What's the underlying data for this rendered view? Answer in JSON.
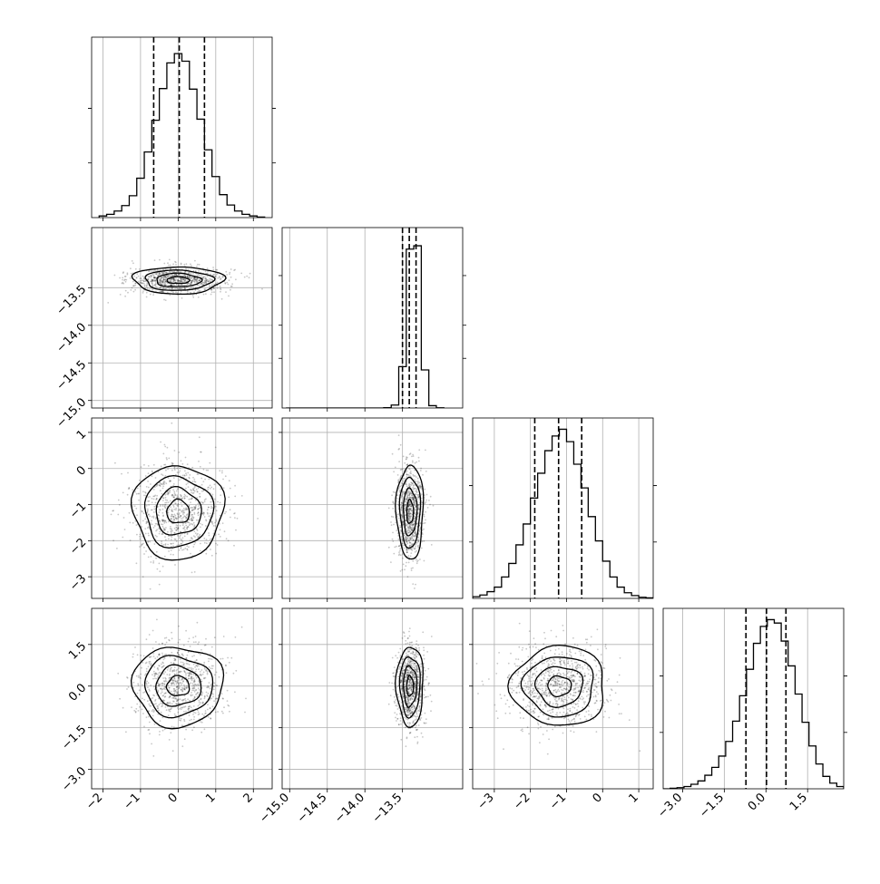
{
  "chart_data": {
    "type": "corner",
    "title": "",
    "params": [
      {
        "range": [
          -2.3,
          2.5
        ],
        "ticks": [
          -2,
          -1,
          0,
          1,
          2
        ],
        "tick_labels": [
          "−2",
          "−1",
          "0",
          "1",
          "2"
        ],
        "mean": 0.0,
        "sd": 0.6,
        "quantiles": [
          -0.65,
          0.03,
          0.7
        ]
      },
      {
        "range": [
          -15.1,
          -12.7
        ],
        "ticks": [
          -15.0,
          -14.5,
          -14.0,
          -13.5
        ],
        "tick_labels": [
          "−15.0",
          "−14.5",
          "−14.0",
          "−13.5"
        ],
        "mean": -13.4,
        "sd": 0.09,
        "quantiles": [
          -13.5,
          -13.41,
          -13.32
        ]
      },
      {
        "range": [
          -3.6,
          1.4
        ],
        "ticks": [
          -3,
          -2,
          -1,
          0,
          1
        ],
        "tick_labels": [
          "−3",
          "−2",
          "−1",
          "0",
          "1"
        ],
        "mean": -1.2,
        "sd": 0.65,
        "quantiles": [
          -1.88,
          -1.22,
          -0.58
        ]
      },
      {
        "range": [
          -3.7,
          2.8
        ],
        "ticks": [
          -3.0,
          -1.5,
          0.0,
          1.5
        ],
        "tick_labels": [
          "−3.0",
          "−1.5",
          "0.0",
          "1.5"
        ],
        "mean": 0.0,
        "sd": 0.72,
        "quantiles": [
          -0.72,
          0.02,
          0.72
        ]
      }
    ],
    "histograms": [
      {
        "param": 0,
        "bins": [
          -2.1,
          -1.9,
          -1.7,
          -1.5,
          -1.3,
          -1.1,
          -0.9,
          -0.7,
          -0.5,
          -0.3,
          -0.1,
          0.1,
          0.3,
          0.5,
          0.7,
          0.9,
          1.1,
          1.3,
          1.5,
          1.7,
          1.9,
          2.1,
          2.3
        ],
        "counts": [
          3,
          6,
          12,
          22,
          40,
          72,
          120,
          178,
          236,
          283,
          300,
          286,
          235,
          180,
          124,
          75,
          42,
          23,
          12,
          6,
          3,
          1
        ],
        "ylim": [
          0,
          330
        ]
      },
      {
        "param": 1,
        "bins": [
          -15.05,
          -14.95,
          -14.85,
          -14.75,
          -14.65,
          -14.55,
          -14.45,
          -14.35,
          -14.25,
          -14.15,
          -14.05,
          -13.95,
          -13.85,
          -13.75,
          -13.65,
          -13.55,
          -13.45,
          -13.35,
          -13.25,
          -13.15,
          -13.05,
          -12.95
        ],
        "counts": [
          0,
          0,
          0,
          0,
          0,
          0,
          0,
          0,
          0,
          0,
          0,
          0,
          0,
          2,
          18,
          250,
          960,
          980,
          230,
          14,
          1
        ],
        "ylim": [
          0,
          1090
        ]
      },
      {
        "param": 2,
        "bins": [
          -3.6,
          -3.4,
          -3.2,
          -3.0,
          -2.8,
          -2.6,
          -2.4,
          -2.2,
          -2.0,
          -1.8,
          -1.6,
          -1.4,
          -1.2,
          -1.0,
          -0.8,
          -0.6,
          -0.4,
          -0.2,
          0.0,
          0.2,
          0.4,
          0.6,
          0.8,
          1.0,
          1.2,
          1.4
        ],
        "counts": [
          3,
          6,
          12,
          20,
          38,
          62,
          95,
          132,
          178,
          222,
          262,
          288,
          300,
          278,
          238,
          196,
          145,
          102,
          66,
          38,
          20,
          10,
          5,
          2,
          1
        ],
        "ylim": [
          0,
          320
        ]
      },
      {
        "param": 3,
        "bins": [
          -3.7,
          -3.45,
          -3.2,
          -2.95,
          -2.7,
          -2.45,
          -2.2,
          -1.95,
          -1.7,
          -1.45,
          -1.2,
          -0.95,
          -0.7,
          -0.45,
          -0.2,
          0.05,
          0.3,
          0.55,
          0.8,
          1.05,
          1.3,
          1.55,
          1.8,
          2.05,
          2.3,
          2.55,
          2.8
        ],
        "counts": [
          0,
          1,
          2,
          4,
          8,
          14,
          24,
          38,
          58,
          84,
          120,
          165,
          212,
          258,
          288,
          300,
          294,
          262,
          218,
          168,
          118,
          76,
          44,
          22,
          10,
          4
        ],
        "ylim": [
          0,
          320
        ]
      }
    ],
    "panels_2d": [
      {
        "x_param": 0,
        "y_param": 1
      },
      {
        "x_param": 0,
        "y_param": 2
      },
      {
        "x_param": 1,
        "y_param": 2
      },
      {
        "x_param": 0,
        "y_param": 3
      },
      {
        "x_param": 1,
        "y_param": 3
      },
      {
        "x_param": 2,
        "y_param": 3
      }
    ],
    "contour_levels_sigma": [
      0.5,
      1.0,
      1.5,
      2.0
    ],
    "grid": true,
    "xlabel": "",
    "ylabel": "",
    "colors": {
      "line": "#000000",
      "grid": "#b0b0b0",
      "points": "#000000",
      "frame": "#000000"
    }
  }
}
